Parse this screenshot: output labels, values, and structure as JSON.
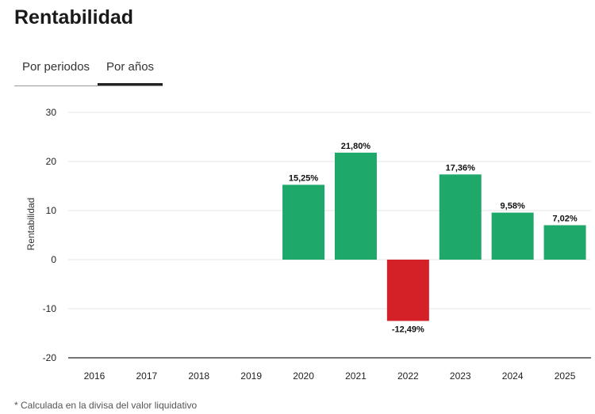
{
  "page": {
    "title": "Rentabilidad",
    "tabs": [
      {
        "label": "Por periodos",
        "active": false
      },
      {
        "label": "Por años",
        "active": true
      }
    ],
    "footnote": "* Calculada en la divisa del valor liquidativo"
  },
  "chart_data": {
    "type": "bar",
    "title": "",
    "xlabel": "",
    "ylabel": "Rentabilidad",
    "ylim": [
      -20,
      30
    ],
    "yticks": [
      30,
      20,
      10,
      0,
      -10,
      -20
    ],
    "grid": true,
    "categories": [
      "2016",
      "2017",
      "2018",
      "2019",
      "2020",
      "2021",
      "2022",
      "2023",
      "2024",
      "2025"
    ],
    "values": [
      null,
      null,
      null,
      null,
      15.25,
      21.8,
      -12.49,
      17.36,
      9.58,
      7.02
    ],
    "data_labels": [
      "",
      "",
      "",
      "",
      "15,25%",
      "21,80%",
      "-12,49%",
      "17,36%",
      "9,58%",
      "7,02%"
    ],
    "colors": {
      "positive": "#1ea86a",
      "negative": "#d42027",
      "grid": "#e6e6e6",
      "axis": "#222222"
    }
  }
}
